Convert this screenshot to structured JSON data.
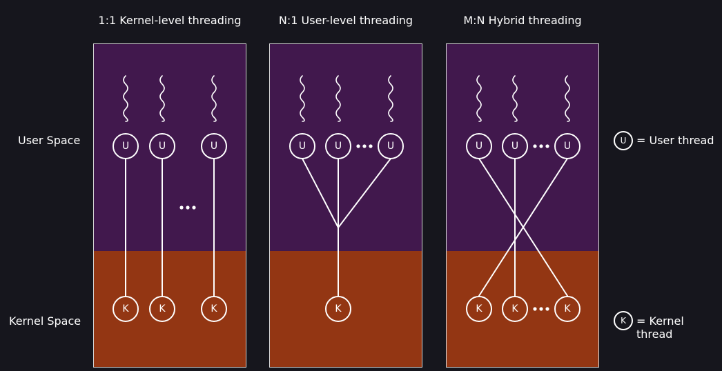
{
  "titles": {
    "one_to_one": "1:1 Kernel-level threading",
    "n_to_one": "N:1 User-level threading",
    "m_to_n": "M:N Hybrid threading"
  },
  "labels": {
    "user_space": "User Space",
    "kernel_space": "Kernel Space"
  },
  "nodes": {
    "user": "U",
    "kernel": "K"
  },
  "legend": {
    "user_thread": "= User thread",
    "kernel_thread": "= Kernel thread"
  },
  "colors": {
    "background": "#16161d",
    "user_space": "#41184d",
    "kernel_space": "#933613",
    "stroke": "#ffffff"
  }
}
